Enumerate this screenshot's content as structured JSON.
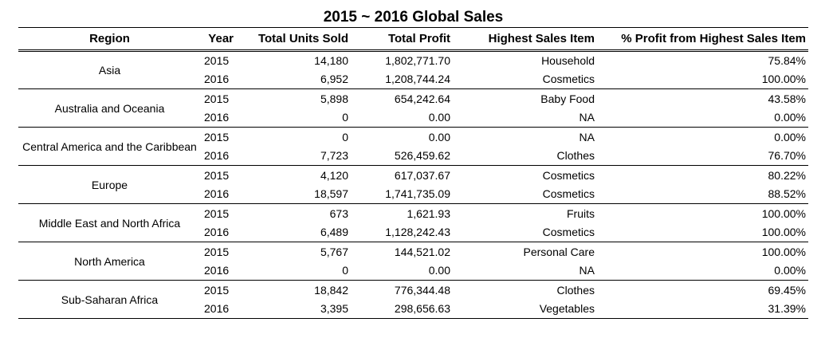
{
  "chart_data": {
    "type": "table",
    "title": "2015 ~ 2016 Global Sales",
    "columns": [
      "Region",
      "Year",
      "Total Units Sold",
      "Total Profit",
      "Highest Sales Item",
      "% Profit from Highest Sales Item"
    ],
    "groups": [
      {
        "region": "Asia",
        "rows": [
          {
            "year": "2015",
            "units": "14,180",
            "profit": "1,802,771.70",
            "item": "Household",
            "pct": "75.84%"
          },
          {
            "year": "2016",
            "units": "6,952",
            "profit": "1,208,744.24",
            "item": "Cosmetics",
            "pct": "100.00%"
          }
        ]
      },
      {
        "region": "Australia and Oceania",
        "rows": [
          {
            "year": "2015",
            "units": "5,898",
            "profit": "654,242.64",
            "item": "Baby Food",
            "pct": "43.58%"
          },
          {
            "year": "2016",
            "units": "0",
            "profit": "0.00",
            "item": "NA",
            "pct": "0.00%"
          }
        ]
      },
      {
        "region": "Central America and the Caribbean",
        "rows": [
          {
            "year": "2015",
            "units": "0",
            "profit": "0.00",
            "item": "NA",
            "pct": "0.00%"
          },
          {
            "year": "2016",
            "units": "7,723",
            "profit": "526,459.62",
            "item": "Clothes",
            "pct": "76.70%"
          }
        ]
      },
      {
        "region": "Europe",
        "rows": [
          {
            "year": "2015",
            "units": "4,120",
            "profit": "617,037.67",
            "item": "Cosmetics",
            "pct": "80.22%"
          },
          {
            "year": "2016",
            "units": "18,597",
            "profit": "1,741,735.09",
            "item": "Cosmetics",
            "pct": "88.52%"
          }
        ]
      },
      {
        "region": "Middle East and North Africa",
        "rows": [
          {
            "year": "2015",
            "units": "673",
            "profit": "1,621.93",
            "item": "Fruits",
            "pct": "100.00%"
          },
          {
            "year": "2016",
            "units": "6,489",
            "profit": "1,128,242.43",
            "item": "Cosmetics",
            "pct": "100.00%"
          }
        ]
      },
      {
        "region": "North America",
        "rows": [
          {
            "year": "2015",
            "units": "5,767",
            "profit": "144,521.02",
            "item": "Personal Care",
            "pct": "100.00%"
          },
          {
            "year": "2016",
            "units": "0",
            "profit": "0.00",
            "item": "NA",
            "pct": "0.00%"
          }
        ]
      },
      {
        "region": "Sub-Saharan Africa",
        "rows": [
          {
            "year": "2015",
            "units": "18,842",
            "profit": "776,344.48",
            "item": "Clothes",
            "pct": "69.45%"
          },
          {
            "year": "2016",
            "units": "3,395",
            "profit": "298,656.63",
            "item": "Vegetables",
            "pct": "31.39%"
          }
        ]
      }
    ]
  }
}
